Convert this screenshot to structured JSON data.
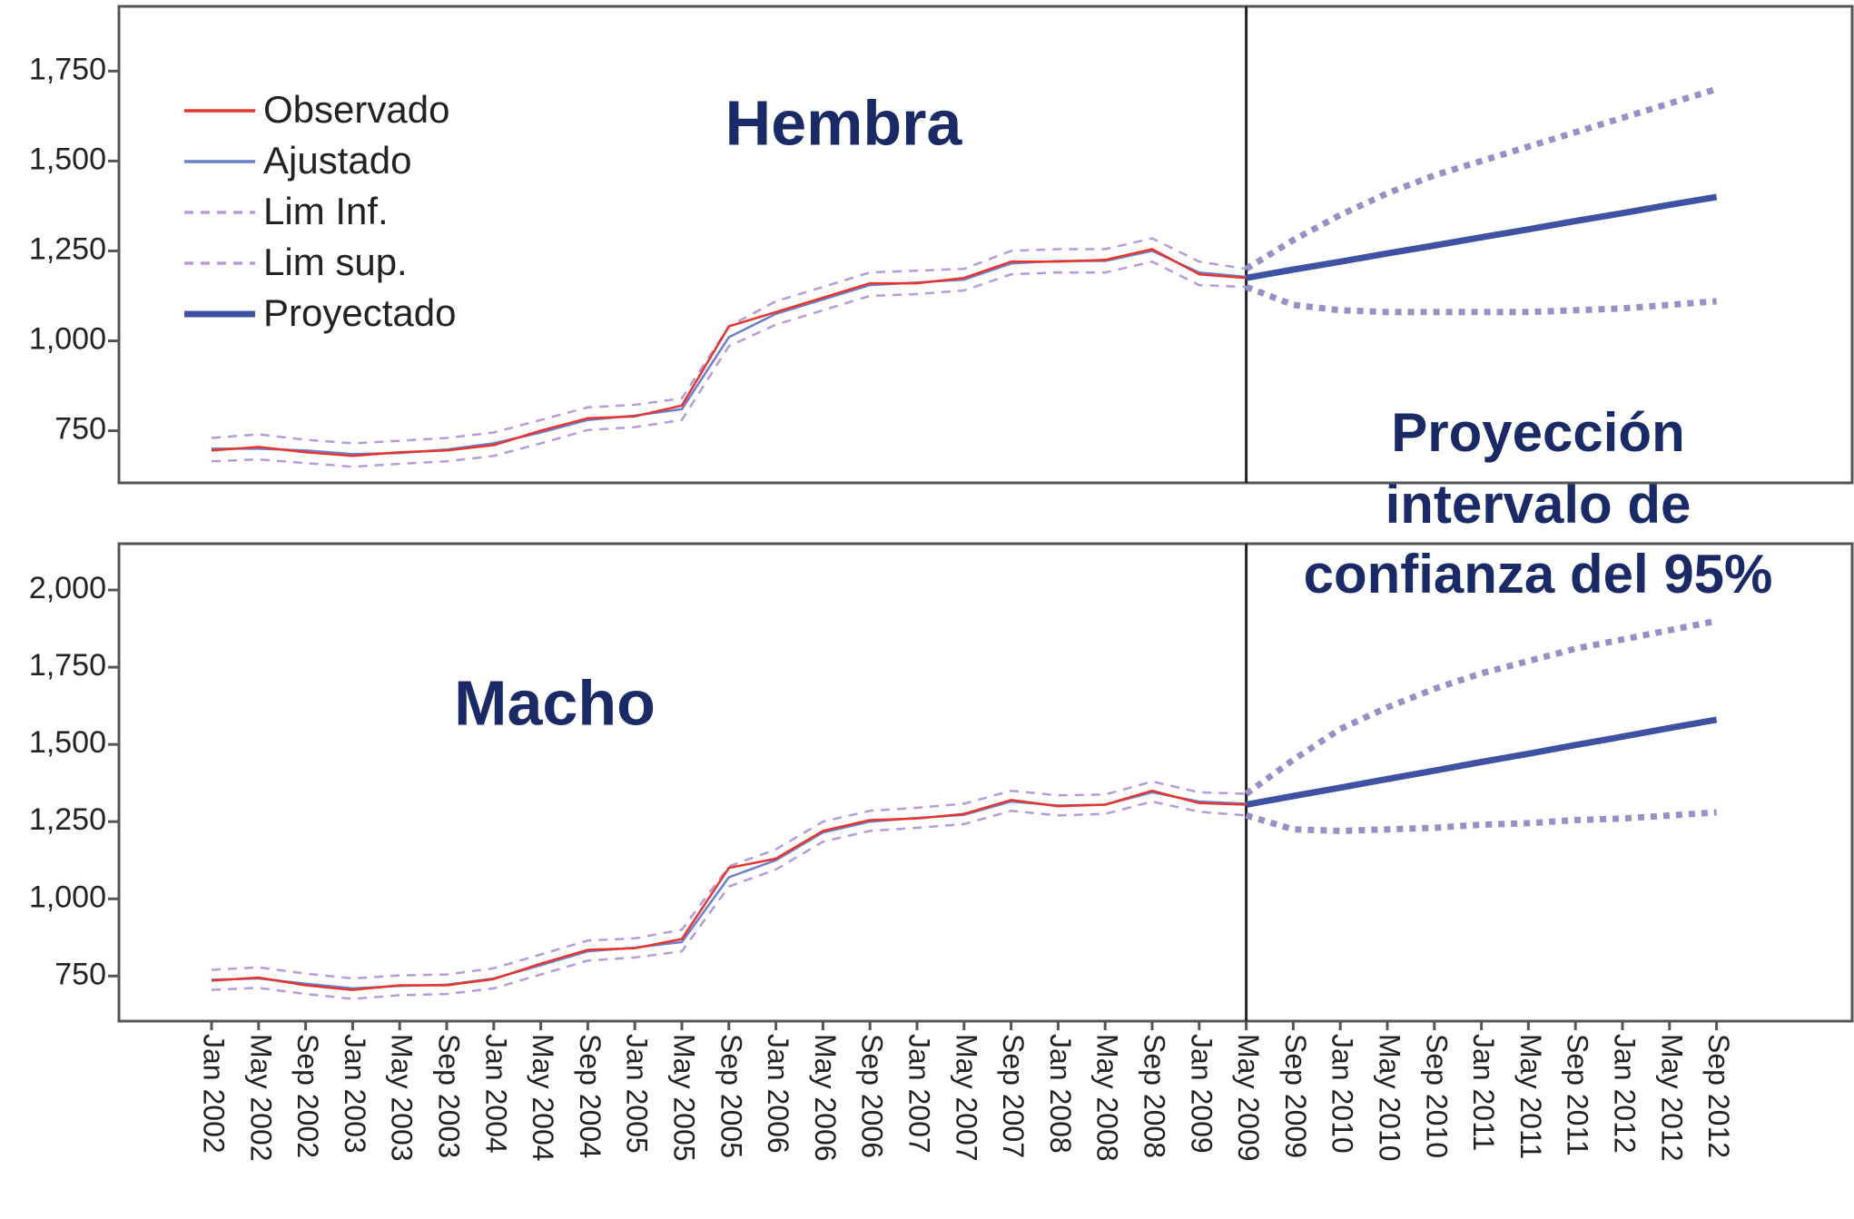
{
  "chart_data": [
    {
      "type": "line",
      "title": "Hembra",
      "annotation": [
        "Proyección",
        "intervalo de",
        "confianza del 95%"
      ],
      "ylim": [
        605,
        1930
      ],
      "yticks": [
        750,
        {
          "value": 1000,
          "label": "1,000"
        },
        {
          "value": 1250,
          "label": "1,250"
        },
        {
          "value": 1500,
          "label": "1,500"
        },
        {
          "value": 1750,
          "label": "1,750"
        }
      ],
      "legend": "upper left",
      "series": [
        {
          "name": "Observado",
          "color": "#e8342c",
          "values": [
            695,
            705,
            690,
            680,
            690,
            695,
            710,
            750,
            785,
            790,
            820,
            1040,
            1080,
            1120,
            1160,
            1160,
            1175,
            1220,
            1220,
            1225,
            1255,
            1185,
            1175,
            null,
            null,
            null,
            null,
            null,
            null,
            null,
            null,
            null,
            null
          ]
        },
        {
          "name": "Ajustado",
          "color": "#6a7fd0",
          "values": [
            700,
            700,
            695,
            685,
            688,
            698,
            715,
            745,
            780,
            792,
            810,
            1010,
            1075,
            1115,
            1155,
            1162,
            1170,
            1215,
            1222,
            1222,
            1250,
            1190,
            1178,
            null,
            null,
            null,
            null,
            null,
            null,
            null,
            null,
            null,
            null
          ]
        },
        {
          "name": "Lim Inf.",
          "color": "#b89ad8",
          "values": [
            665,
            670,
            660,
            650,
            658,
            665,
            680,
            715,
            752,
            760,
            780,
            985,
            1045,
            1085,
            1125,
            1130,
            1140,
            1185,
            1190,
            1190,
            1220,
            1155,
            1150,
            1100,
            1085,
            1080,
            1080,
            1080,
            1080,
            1085,
            1090,
            1100,
            1110
          ]
        },
        {
          "name": "Lim sup.",
          "color": "#b89ad8",
          "values": [
            730,
            740,
            725,
            715,
            722,
            730,
            745,
            780,
            815,
            822,
            840,
            1040,
            1110,
            1150,
            1190,
            1195,
            1200,
            1250,
            1255,
            1255,
            1285,
            1220,
            1200,
            1280,
            1350,
            1410,
            1460,
            1500,
            1540,
            1580,
            1620,
            1660,
            1700
          ]
        },
        {
          "name": "Proyectado",
          "color": "#3f51a3",
          "values": [
            null,
            null,
            null,
            null,
            null,
            null,
            null,
            null,
            null,
            null,
            null,
            null,
            null,
            null,
            null,
            null,
            null,
            null,
            null,
            null,
            null,
            null,
            1175,
            1198,
            1220,
            1243,
            1265,
            1288,
            1310,
            1333,
            1355,
            1378,
            1400
          ]
        }
      ]
    },
    {
      "type": "line",
      "title": "Macho",
      "categories": [
        "Jan 2002",
        "May 2002",
        "Sep 2002",
        "Jan 2003",
        "May 2003",
        "Sep 2003",
        "Jan 2004",
        "May 2004",
        "Sep 2004",
        "Jan 2005",
        "May 2005",
        "Sep 2005",
        "Jan 2006",
        "May 2006",
        "Sep 2006",
        "Jan 2007",
        "May 2007",
        "Sep 2007",
        "Jan 2008",
        "May 2008",
        "Sep 2008",
        "Jan 2009",
        "May 2009",
        "Sep 2009",
        "Jan 2010",
        "May 2010",
        "Sep 2010",
        "Jan 2011",
        "May 2011",
        "Sep 2011",
        "Jan 2012",
        "May 2012",
        "Sep 2012"
      ],
      "ylim": [
        604,
        2150
      ],
      "yticks": [
        750,
        {
          "value": 1000,
          "label": "1,000"
        },
        {
          "value": 1250,
          "label": "1,250"
        },
        {
          "value": 1500,
          "label": "1,500"
        },
        {
          "value": 1750,
          "label": "1,750"
        },
        {
          "value": 2000,
          "label": "2,000"
        }
      ],
      "series": [
        {
          "color": "#e8342c",
          "values": [
            735,
            745,
            720,
            705,
            720,
            720,
            740,
            790,
            835,
            840,
            870,
            1100,
            1130,
            1220,
            1255,
            1260,
            1275,
            1320,
            1300,
            1305,
            1350,
            1310,
            1305,
            null,
            null,
            null,
            null,
            null,
            null,
            null,
            null,
            null,
            null
          ]
        },
        {
          "color": "#6a7fd0",
          "values": [
            738,
            742,
            725,
            710,
            718,
            722,
            742,
            785,
            830,
            842,
            860,
            1070,
            1125,
            1215,
            1250,
            1262,
            1272,
            1315,
            1302,
            1305,
            1345,
            1315,
            1308,
            null,
            null,
            null,
            null,
            null,
            null,
            null,
            null,
            null,
            null
          ]
        },
        {
          "color": "#b89ad8",
          "values": [
            705,
            712,
            692,
            676,
            688,
            692,
            710,
            755,
            800,
            810,
            830,
            1040,
            1095,
            1185,
            1220,
            1230,
            1242,
            1285,
            1270,
            1275,
            1315,
            1282,
            1270,
            1225,
            1220,
            1225,
            1230,
            1240,
            1245,
            1255,
            1260,
            1270,
            1280
          ]
        },
        {
          "color": "#b89ad8",
          "values": [
            770,
            778,
            758,
            742,
            752,
            755,
            775,
            820,
            865,
            872,
            900,
            1105,
            1160,
            1250,
            1285,
            1295,
            1308,
            1350,
            1335,
            1338,
            1380,
            1345,
            1340,
            1450,
            1550,
            1620,
            1680,
            1730,
            1770,
            1810,
            1840,
            1870,
            1900
          ]
        },
        {
          "color": "#3f51a3",
          "values": [
            null,
            null,
            null,
            null,
            null,
            null,
            null,
            null,
            null,
            null,
            null,
            null,
            null,
            null,
            null,
            null,
            null,
            null,
            null,
            null,
            null,
            null,
            1305,
            1333,
            1360,
            1388,
            1415,
            1443,
            1470,
            1498,
            1525,
            1553,
            1580
          ]
        }
      ]
    }
  ]
}
